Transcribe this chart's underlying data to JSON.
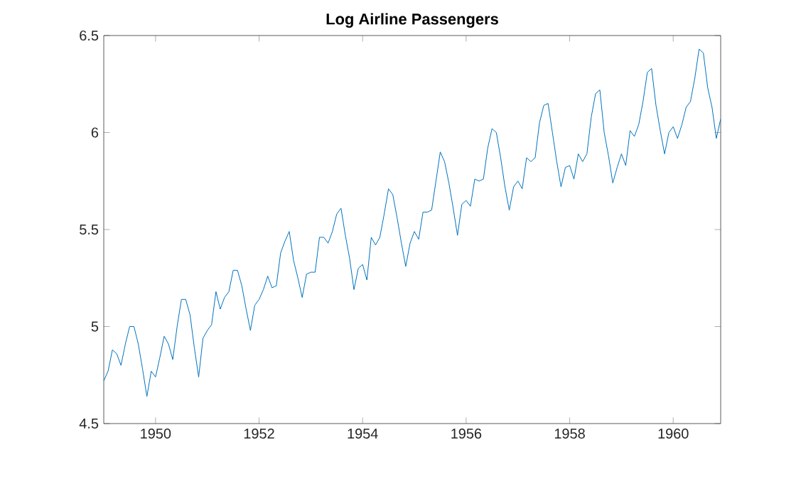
{
  "chart_data": {
    "type": "line",
    "title": "Log Airline Passengers",
    "x": [
      1949.0,
      1949.083,
      1949.167,
      1949.25,
      1949.333,
      1949.417,
      1949.5,
      1949.583,
      1949.667,
      1949.75,
      1949.833,
      1949.917,
      1950.0,
      1950.083,
      1950.167,
      1950.25,
      1950.333,
      1950.417,
      1950.5,
      1950.583,
      1950.667,
      1950.75,
      1950.833,
      1950.917,
      1951.0,
      1951.083,
      1951.167,
      1951.25,
      1951.333,
      1951.417,
      1951.5,
      1951.583,
      1951.667,
      1951.75,
      1951.833,
      1951.917,
      1952.0,
      1952.083,
      1952.167,
      1952.25,
      1952.333,
      1952.417,
      1952.5,
      1952.583,
      1952.667,
      1952.75,
      1952.833,
      1952.917,
      1953.0,
      1953.083,
      1953.167,
      1953.25,
      1953.333,
      1953.417,
      1953.5,
      1953.583,
      1953.667,
      1953.75,
      1953.833,
      1953.917,
      1954.0,
      1954.083,
      1954.167,
      1954.25,
      1954.333,
      1954.417,
      1954.5,
      1954.583,
      1954.667,
      1954.75,
      1954.833,
      1954.917,
      1955.0,
      1955.083,
      1955.167,
      1955.25,
      1955.333,
      1955.417,
      1955.5,
      1955.583,
      1955.667,
      1955.75,
      1955.833,
      1955.917,
      1956.0,
      1956.083,
      1956.167,
      1956.25,
      1956.333,
      1956.417,
      1956.5,
      1956.583,
      1956.667,
      1956.75,
      1956.833,
      1956.917,
      1957.0,
      1957.083,
      1957.167,
      1957.25,
      1957.333,
      1957.417,
      1957.5,
      1957.583,
      1957.667,
      1957.75,
      1957.833,
      1957.917,
      1958.0,
      1958.083,
      1958.167,
      1958.25,
      1958.333,
      1958.417,
      1958.5,
      1958.583,
      1958.667,
      1958.75,
      1958.833,
      1958.917,
      1959.0,
      1959.083,
      1959.167,
      1959.25,
      1959.333,
      1959.417,
      1959.5,
      1959.583,
      1959.667,
      1959.75,
      1959.833,
      1959.917,
      1960.0,
      1960.083,
      1960.167,
      1960.25,
      1960.333,
      1960.417,
      1960.5,
      1960.583,
      1960.667,
      1960.75,
      1960.833,
      1960.917
    ],
    "series": [
      {
        "color": "#0072bd",
        "values": [
          4.72,
          4.77,
          4.88,
          4.86,
          4.8,
          4.91,
          5.0,
          5.0,
          4.91,
          4.78,
          4.64,
          4.77,
          4.74,
          4.84,
          4.95,
          4.91,
          4.83,
          5.0,
          5.14,
          5.14,
          5.06,
          4.89,
          4.74,
          4.94,
          4.98,
          5.01,
          5.18,
          5.09,
          5.15,
          5.18,
          5.29,
          5.29,
          5.21,
          5.09,
          4.98,
          5.11,
          5.14,
          5.19,
          5.26,
          5.2,
          5.21,
          5.38,
          5.44,
          5.49,
          5.34,
          5.25,
          5.15,
          5.27,
          5.28,
          5.28,
          5.46,
          5.46,
          5.43,
          5.49,
          5.58,
          5.61,
          5.47,
          5.35,
          5.19,
          5.3,
          5.32,
          5.24,
          5.46,
          5.42,
          5.46,
          5.58,
          5.71,
          5.68,
          5.56,
          5.43,
          5.31,
          5.43,
          5.49,
          5.45,
          5.59,
          5.59,
          5.6,
          5.75,
          5.9,
          5.85,
          5.74,
          5.61,
          5.47,
          5.63,
          5.65,
          5.62,
          5.76,
          5.75,
          5.76,
          5.92,
          6.02,
          6.0,
          5.87,
          5.72,
          5.6,
          5.72,
          5.75,
          5.71,
          5.87,
          5.85,
          5.87,
          6.05,
          6.14,
          6.15,
          6.0,
          5.85,
          5.72,
          5.82,
          5.83,
          5.76,
          5.89,
          5.85,
          5.89,
          6.08,
          6.2,
          6.22,
          6.0,
          5.88,
          5.74,
          5.82,
          5.89,
          5.83,
          6.01,
          5.98,
          6.04,
          6.16,
          6.31,
          6.33,
          6.14,
          6.01,
          5.89,
          6.0,
          6.03,
          5.97,
          6.04,
          6.13,
          6.16,
          6.28,
          6.43,
          6.41,
          6.23,
          6.13,
          5.97,
          6.07
        ]
      }
    ],
    "xlim": [
      1949.0,
      1960.917
    ],
    "ylim": [
      4.5,
      6.5
    ],
    "xticks": [
      1950,
      1952,
      1954,
      1956,
      1958,
      1960
    ],
    "yticks": [
      4.5,
      5,
      5.5,
      6,
      6.5
    ],
    "grid": false,
    "marker": "none",
    "line_style": "solid"
  }
}
